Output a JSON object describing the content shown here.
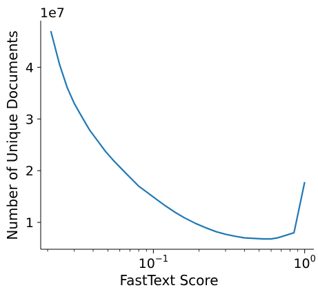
{
  "chart_data": {
    "type": "line",
    "xlabel": "FastText Score",
    "ylabel": "Number of Unique Documents",
    "y_scale_label": "1e7",
    "x_scale": "log",
    "xlim": [
      0.018,
      1.15
    ],
    "ylim": [
      4800000,
      49000000
    ],
    "x_ticks": [
      {
        "value": 0.1,
        "label": "10",
        "exp": "−1"
      },
      {
        "value": 1.0,
        "label": "10",
        "exp": "0"
      }
    ],
    "y_ticks": [
      {
        "value": 10000000,
        "label": "1"
      },
      {
        "value": 20000000,
        "label": "2"
      },
      {
        "value": 30000000,
        "label": "3"
      },
      {
        "value": 40000000,
        "label": "4"
      }
    ],
    "grid": false,
    "line_color": "#1f77b4",
    "series": [
      {
        "x": [
          0.021,
          0.024,
          0.027,
          0.03,
          0.034,
          0.038,
          0.043,
          0.048,
          0.054,
          0.06,
          0.07,
          0.08,
          0.09,
          0.1,
          0.12,
          0.14,
          0.16,
          0.19,
          0.22,
          0.26,
          0.3,
          0.35,
          0.4,
          0.46,
          0.53,
          0.6,
          0.66,
          0.75,
          0.85,
          1.0
        ],
        "y": [
          47000000,
          40500000,
          36000000,
          33000000,
          30200000,
          27800000,
          25700000,
          23800000,
          22100000,
          20700000,
          18700000,
          17000000,
          15900000,
          14900000,
          13200000,
          11900000,
          10900000,
          9800000,
          9000000,
          8200000,
          7700000,
          7300000,
          7000000,
          6900000,
          6800000,
          6800000,
          7000000,
          7500000,
          8000000,
          17800000
        ]
      }
    ]
  }
}
